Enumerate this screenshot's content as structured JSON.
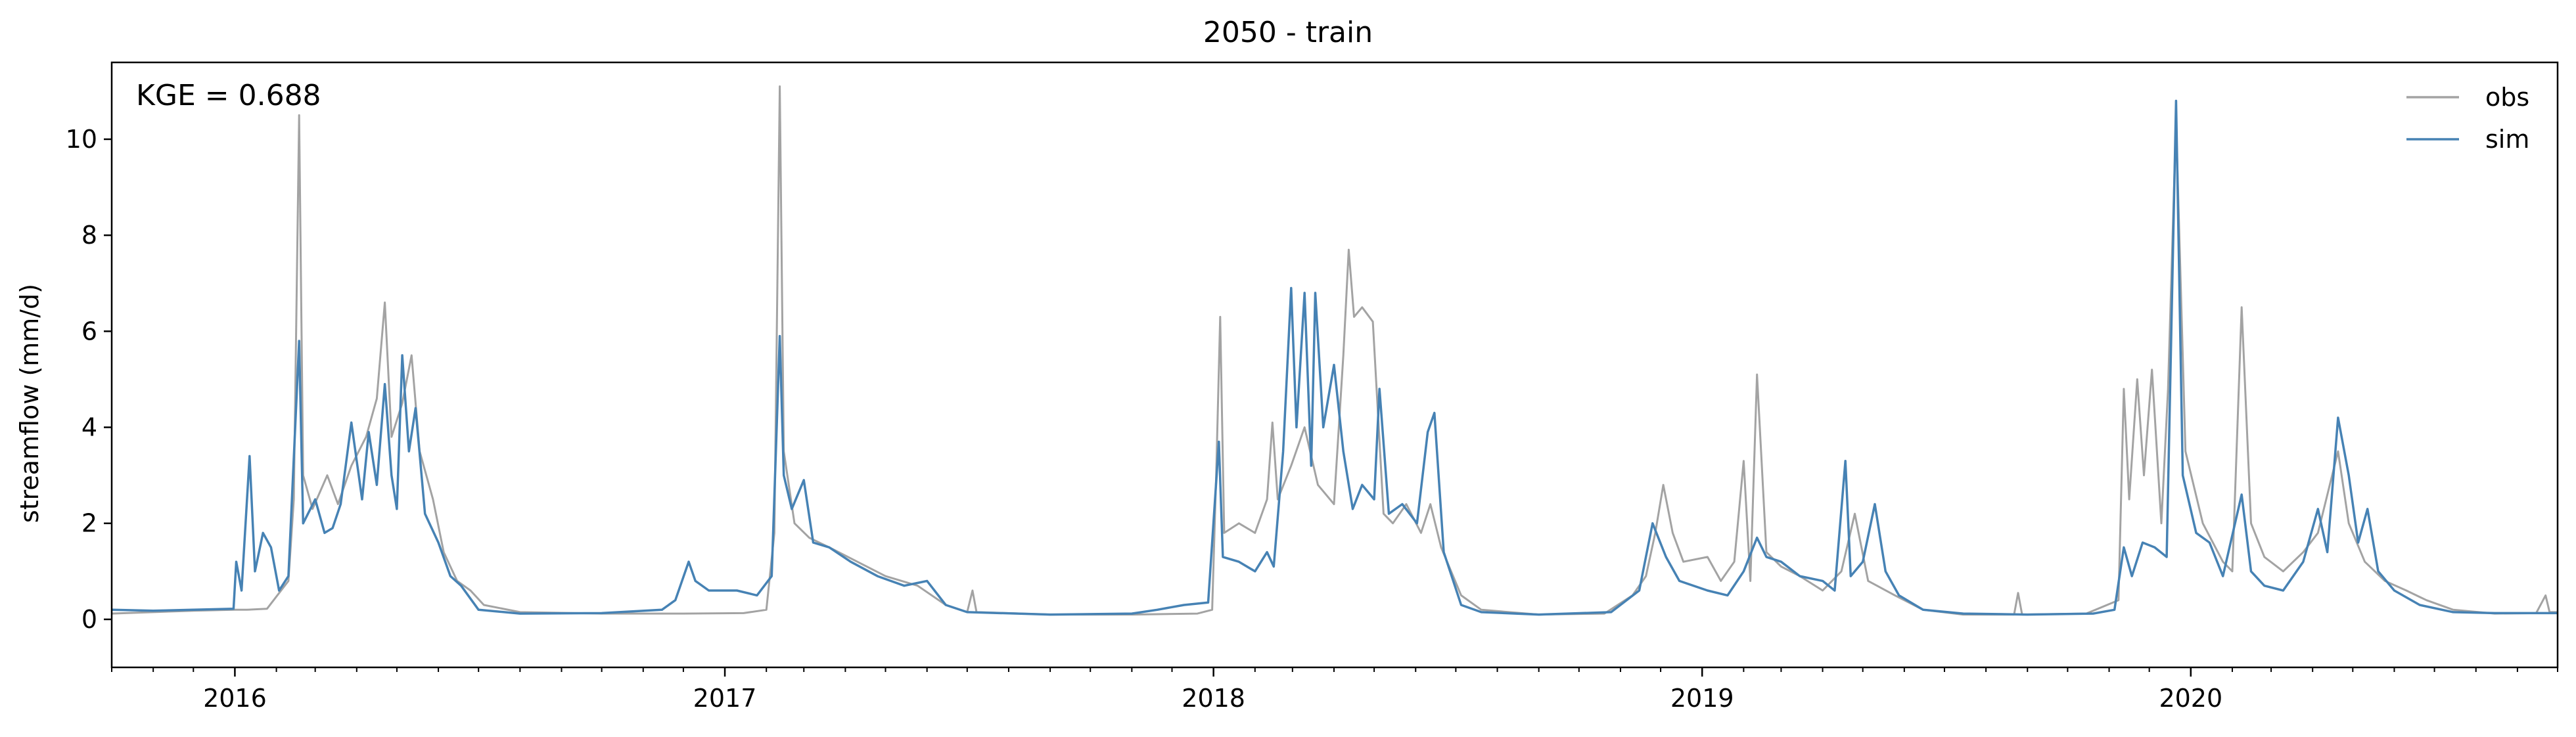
{
  "chart_data": {
    "type": "line",
    "title": "2050 - train",
    "xlabel": "",
    "ylabel": "streamflow (mm/d)",
    "annotation": "KGE = 0.688",
    "xlim": [
      "2015-10-01",
      "2020-10-01"
    ],
    "ylim": [
      -1,
      11.6
    ],
    "x_ticks": [
      {
        "date": "2016-01-01",
        "label": "2016"
      },
      {
        "date": "2017-01-01",
        "label": "2017"
      },
      {
        "date": "2018-01-01",
        "label": "2018"
      },
      {
        "date": "2019-01-01",
        "label": "2019"
      },
      {
        "date": "2020-01-01",
        "label": "2020"
      }
    ],
    "y_ticks": [
      0,
      2,
      4,
      6,
      8,
      10
    ],
    "legend_position": "top-right",
    "grid": false,
    "series": [
      {
        "name": "obs",
        "color": "#a3a3a3",
        "points": [
          [
            "2015-10-01",
            0.12
          ],
          [
            "2015-11-01",
            0.15
          ],
          [
            "2015-12-01",
            0.18
          ],
          [
            "2015-12-31",
            0.2
          ],
          [
            "2016-01-10",
            0.2
          ],
          [
            "2016-01-25",
            0.22
          ],
          [
            "2016-02-10",
            0.8
          ],
          [
            "2016-02-14",
            2.5
          ],
          [
            "2016-02-18",
            10.5
          ],
          [
            "2016-02-21",
            3.0
          ],
          [
            "2016-02-28",
            2.3
          ],
          [
            "2016-03-10",
            3.0
          ],
          [
            "2016-03-18",
            2.4
          ],
          [
            "2016-03-28",
            3.2
          ],
          [
            "2016-04-08",
            3.8
          ],
          [
            "2016-04-16",
            4.6
          ],
          [
            "2016-04-22",
            6.6
          ],
          [
            "2016-04-27",
            3.8
          ],
          [
            "2016-05-05",
            4.5
          ],
          [
            "2016-05-12",
            5.5
          ],
          [
            "2016-05-18",
            3.5
          ],
          [
            "2016-05-28",
            2.5
          ],
          [
            "2016-06-05",
            1.4
          ],
          [
            "2016-06-15",
            0.8
          ],
          [
            "2016-06-25",
            0.6
          ],
          [
            "2016-07-05",
            0.3
          ],
          [
            "2016-08-01",
            0.15
          ],
          [
            "2016-10-01",
            0.12
          ],
          [
            "2016-12-01",
            0.12
          ],
          [
            "2017-01-15",
            0.13
          ],
          [
            "2017-02-01",
            0.2
          ],
          [
            "2017-02-07",
            1.8
          ],
          [
            "2017-02-11",
            11.1
          ],
          [
            "2017-02-14",
            3.5
          ],
          [
            "2017-02-22",
            2.0
          ],
          [
            "2017-03-05",
            1.7
          ],
          [
            "2017-03-20",
            1.5
          ],
          [
            "2017-04-10",
            1.2
          ],
          [
            "2017-05-01",
            0.9
          ],
          [
            "2017-05-25",
            0.7
          ],
          [
            "2017-06-15",
            0.3
          ],
          [
            "2017-07-01",
            0.15
          ],
          [
            "2017-07-05",
            0.6
          ],
          [
            "2017-07-08",
            0.15
          ],
          [
            "2017-09-01",
            0.1
          ],
          [
            "2017-11-01",
            0.1
          ],
          [
            "2017-12-20",
            0.12
          ],
          [
            "2017-12-31",
            0.2
          ],
          [
            "2018-01-03",
            3.0
          ],
          [
            "2018-01-06",
            6.3
          ],
          [
            "2018-01-09",
            1.8
          ],
          [
            "2018-01-20",
            2.0
          ],
          [
            "2018-02-01",
            1.8
          ],
          [
            "2018-02-10",
            2.5
          ],
          [
            "2018-02-14",
            4.1
          ],
          [
            "2018-02-18",
            2.5
          ],
          [
            "2018-02-28",
            3.2
          ],
          [
            "2018-03-10",
            4.0
          ],
          [
            "2018-03-20",
            2.8
          ],
          [
            "2018-04-01",
            2.4
          ],
          [
            "2018-04-08",
            5.5
          ],
          [
            "2018-04-12",
            7.7
          ],
          [
            "2018-04-16",
            6.3
          ],
          [
            "2018-04-22",
            6.5
          ],
          [
            "2018-04-30",
            6.2
          ],
          [
            "2018-05-08",
            2.2
          ],
          [
            "2018-05-15",
            2.0
          ],
          [
            "2018-05-25",
            2.4
          ],
          [
            "2018-06-05",
            1.8
          ],
          [
            "2018-06-12",
            2.4
          ],
          [
            "2018-06-20",
            1.5
          ],
          [
            "2018-07-05",
            0.5
          ],
          [
            "2018-07-20",
            0.2
          ],
          [
            "2018-09-01",
            0.1
          ],
          [
            "2018-10-20",
            0.12
          ],
          [
            "2018-11-10",
            0.5
          ],
          [
            "2018-11-20",
            0.9
          ],
          [
            "2018-11-27",
            1.8
          ],
          [
            "2018-12-03",
            2.8
          ],
          [
            "2018-12-10",
            1.8
          ],
          [
            "2018-12-18",
            1.2
          ],
          [
            "2019-01-05",
            1.3
          ],
          [
            "2019-01-15",
            0.8
          ],
          [
            "2019-01-25",
            1.2
          ],
          [
            "2019-02-01",
            3.3
          ],
          [
            "2019-02-06",
            0.8
          ],
          [
            "2019-02-11",
            5.1
          ],
          [
            "2019-02-18",
            1.4
          ],
          [
            "2019-03-01",
            1.1
          ],
          [
            "2019-03-15",
            0.9
          ],
          [
            "2019-04-01",
            0.6
          ],
          [
            "2019-04-15",
            1.0
          ],
          [
            "2019-04-25",
            2.2
          ],
          [
            "2019-05-05",
            0.8
          ],
          [
            "2019-05-25",
            0.5
          ],
          [
            "2019-06-15",
            0.2
          ],
          [
            "2019-07-15",
            0.1
          ],
          [
            "2019-08-22",
            0.1
          ],
          [
            "2019-08-25",
            0.55
          ],
          [
            "2019-08-28",
            0.1
          ],
          [
            "2019-10-15",
            0.12
          ],
          [
            "2019-11-08",
            0.4
          ],
          [
            "2019-11-12",
            4.8
          ],
          [
            "2019-11-16",
            2.5
          ],
          [
            "2019-11-22",
            5.0
          ],
          [
            "2019-11-27",
            3.0
          ],
          [
            "2019-12-03",
            5.2
          ],
          [
            "2019-12-10",
            2.0
          ],
          [
            "2019-12-15",
            4.8
          ],
          [
            "2019-12-21",
            10.4
          ],
          [
            "2019-12-28",
            3.5
          ],
          [
            "2020-01-10",
            2.0
          ],
          [
            "2020-01-25",
            1.2
          ],
          [
            "2020-02-01",
            1.0
          ],
          [
            "2020-02-08",
            6.5
          ],
          [
            "2020-02-15",
            2.0
          ],
          [
            "2020-02-25",
            1.3
          ],
          [
            "2020-03-10",
            1.0
          ],
          [
            "2020-03-25",
            1.4
          ],
          [
            "2020-04-05",
            1.8
          ],
          [
            "2020-04-20",
            3.5
          ],
          [
            "2020-04-28",
            2.0
          ],
          [
            "2020-05-10",
            1.2
          ],
          [
            "2020-05-25",
            0.8
          ],
          [
            "2020-06-10",
            0.6
          ],
          [
            "2020-06-25",
            0.4
          ],
          [
            "2020-07-15",
            0.2
          ],
          [
            "2020-08-15",
            0.12
          ],
          [
            "2020-09-15",
            0.13
          ],
          [
            "2020-09-22",
            0.5
          ],
          [
            "2020-09-25",
            0.15
          ],
          [
            "2020-10-01",
            0.15
          ]
        ]
      },
      {
        "name": "sim",
        "color": "#4682b4",
        "points": [
          [
            "2015-10-01",
            0.2
          ],
          [
            "2015-11-01",
            0.18
          ],
          [
            "2015-12-01",
            0.2
          ],
          [
            "2015-12-31",
            0.22
          ],
          [
            "2016-01-02",
            1.2
          ],
          [
            "2016-01-06",
            0.6
          ],
          [
            "2016-01-12",
            3.4
          ],
          [
            "2016-01-16",
            1.0
          ],
          [
            "2016-01-22",
            1.8
          ],
          [
            "2016-01-28",
            1.5
          ],
          [
            "2016-02-03",
            0.6
          ],
          [
            "2016-02-10",
            0.9
          ],
          [
            "2016-02-18",
            5.8
          ],
          [
            "2016-02-21",
            2.0
          ],
          [
            "2016-03-01",
            2.5
          ],
          [
            "2016-03-08",
            1.8
          ],
          [
            "2016-03-14",
            1.9
          ],
          [
            "2016-03-20",
            2.4
          ],
          [
            "2016-03-28",
            4.1
          ],
          [
            "2016-04-05",
            2.5
          ],
          [
            "2016-04-10",
            3.9
          ],
          [
            "2016-04-16",
            2.8
          ],
          [
            "2016-04-22",
            4.9
          ],
          [
            "2016-04-27",
            3.0
          ],
          [
            "2016-05-01",
            2.3
          ],
          [
            "2016-05-05",
            5.5
          ],
          [
            "2016-05-10",
            3.5
          ],
          [
            "2016-05-15",
            4.4
          ],
          [
            "2016-05-22",
            2.2
          ],
          [
            "2016-06-01",
            1.6
          ],
          [
            "2016-06-10",
            0.9
          ],
          [
            "2016-06-18",
            0.7
          ],
          [
            "2016-07-01",
            0.2
          ],
          [
            "2016-08-01",
            0.12
          ],
          [
            "2016-10-01",
            0.13
          ],
          [
            "2016-11-15",
            0.2
          ],
          [
            "2016-11-25",
            0.4
          ],
          [
            "2016-12-05",
            1.2
          ],
          [
            "2016-12-10",
            0.8
          ],
          [
            "2016-12-20",
            0.6
          ],
          [
            "2017-01-10",
            0.6
          ],
          [
            "2017-01-25",
            0.5
          ],
          [
            "2017-02-05",
            0.9
          ],
          [
            "2017-02-11",
            5.9
          ],
          [
            "2017-02-14",
            3.0
          ],
          [
            "2017-02-20",
            2.3
          ],
          [
            "2017-03-01",
            2.9
          ],
          [
            "2017-03-08",
            1.6
          ],
          [
            "2017-03-20",
            1.5
          ],
          [
            "2017-04-05",
            1.2
          ],
          [
            "2017-04-25",
            0.9
          ],
          [
            "2017-05-15",
            0.7
          ],
          [
            "2017-06-01",
            0.8
          ],
          [
            "2017-06-15",
            0.3
          ],
          [
            "2017-07-01",
            0.15
          ],
          [
            "2017-09-01",
            0.1
          ],
          [
            "2017-11-01",
            0.12
          ],
          [
            "2017-11-20",
            0.2
          ],
          [
            "2017-12-10",
            0.3
          ],
          [
            "2017-12-28",
            0.35
          ],
          [
            "2018-01-05",
            3.7
          ],
          [
            "2018-01-08",
            1.3
          ],
          [
            "2018-01-20",
            1.2
          ],
          [
            "2018-02-01",
            1.0
          ],
          [
            "2018-02-10",
            1.4
          ],
          [
            "2018-02-15",
            1.1
          ],
          [
            "2018-02-22",
            3.5
          ],
          [
            "2018-02-28",
            6.9
          ],
          [
            "2018-03-04",
            4.0
          ],
          [
            "2018-03-10",
            6.8
          ],
          [
            "2018-03-15",
            3.2
          ],
          [
            "2018-03-18",
            6.8
          ],
          [
            "2018-03-24",
            4.0
          ],
          [
            "2018-04-01",
            5.3
          ],
          [
            "2018-04-08",
            3.5
          ],
          [
            "2018-04-15",
            2.3
          ],
          [
            "2018-04-22",
            2.8
          ],
          [
            "2018-05-01",
            2.5
          ],
          [
            "2018-05-05",
            4.8
          ],
          [
            "2018-05-12",
            2.2
          ],
          [
            "2018-05-22",
            2.4
          ],
          [
            "2018-06-02",
            2.0
          ],
          [
            "2018-06-10",
            3.9
          ],
          [
            "2018-06-15",
            4.3
          ],
          [
            "2018-06-22",
            1.4
          ],
          [
            "2018-07-05",
            0.3
          ],
          [
            "2018-07-20",
            0.15
          ],
          [
            "2018-09-01",
            0.1
          ],
          [
            "2018-10-25",
            0.15
          ],
          [
            "2018-11-15",
            0.6
          ],
          [
            "2018-11-25",
            2.0
          ],
          [
            "2018-12-05",
            1.3
          ],
          [
            "2018-12-15",
            0.8
          ],
          [
            "2019-01-05",
            0.6
          ],
          [
            "2019-01-20",
            0.5
          ],
          [
            "2019-02-01",
            1.0
          ],
          [
            "2019-02-11",
            1.7
          ],
          [
            "2019-02-18",
            1.3
          ],
          [
            "2019-03-01",
            1.2
          ],
          [
            "2019-03-15",
            0.9
          ],
          [
            "2019-04-01",
            0.8
          ],
          [
            "2019-04-10",
            0.6
          ],
          [
            "2019-04-18",
            3.3
          ],
          [
            "2019-04-22",
            0.9
          ],
          [
            "2019-05-01",
            1.2
          ],
          [
            "2019-05-10",
            2.4
          ],
          [
            "2019-05-18",
            1.0
          ],
          [
            "2019-05-28",
            0.5
          ],
          [
            "2019-06-15",
            0.2
          ],
          [
            "2019-07-15",
            0.12
          ],
          [
            "2019-09-01",
            0.1
          ],
          [
            "2019-10-20",
            0.12
          ],
          [
            "2019-11-05",
            0.2
          ],
          [
            "2019-11-12",
            1.5
          ],
          [
            "2019-11-18",
            0.9
          ],
          [
            "2019-11-26",
            1.6
          ],
          [
            "2019-12-05",
            1.5
          ],
          [
            "2019-12-14",
            1.3
          ],
          [
            "2019-12-21",
            10.8
          ],
          [
            "2019-12-26",
            3.0
          ],
          [
            "2020-01-05",
            1.8
          ],
          [
            "2020-01-15",
            1.6
          ],
          [
            "2020-01-25",
            0.9
          ],
          [
            "2020-02-08",
            2.6
          ],
          [
            "2020-02-15",
            1.0
          ],
          [
            "2020-02-25",
            0.7
          ],
          [
            "2020-03-10",
            0.6
          ],
          [
            "2020-03-25",
            1.2
          ],
          [
            "2020-04-05",
            2.3
          ],
          [
            "2020-04-12",
            1.4
          ],
          [
            "2020-04-20",
            4.2
          ],
          [
            "2020-04-28",
            3.0
          ],
          [
            "2020-05-05",
            1.6
          ],
          [
            "2020-05-12",
            2.3
          ],
          [
            "2020-05-20",
            1.0
          ],
          [
            "2020-06-01",
            0.6
          ],
          [
            "2020-06-20",
            0.3
          ],
          [
            "2020-07-15",
            0.15
          ],
          [
            "2020-08-15",
            0.13
          ],
          [
            "2020-10-01",
            0.13
          ]
        ]
      }
    ]
  }
}
